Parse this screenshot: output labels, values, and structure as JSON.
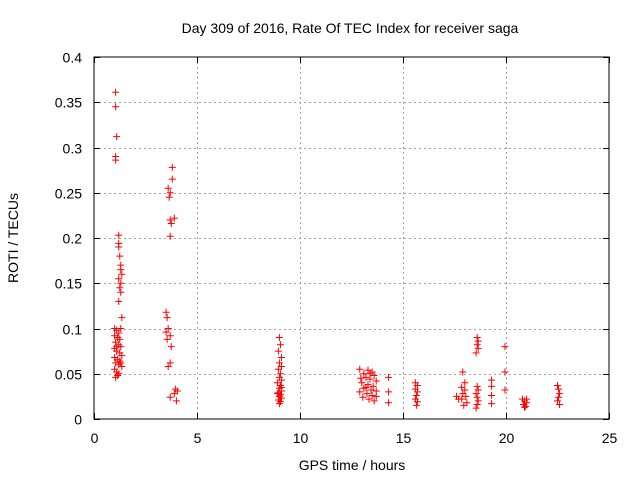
{
  "chart_data": {
    "type": "scatter",
    "title": "Day 309 of 2016, Rate Of TEC Index for receiver saga",
    "xlabel": "GPS time / hours",
    "ylabel": "ROTI / TECUs",
    "xlim": [
      0,
      25
    ],
    "ylim": [
      0,
      0.4
    ],
    "xticks": [
      0,
      5,
      10,
      15,
      20,
      25
    ],
    "yticks": [
      0,
      0.05,
      0.1,
      0.15,
      0.2,
      0.25,
      0.3,
      0.35,
      0.4
    ],
    "xtick_labels": [
      "0",
      "5",
      "10",
      "15",
      "20",
      "25"
    ],
    "ytick_labels": [
      "0",
      "0.05",
      "0.1",
      "0.15",
      "0.2",
      "0.25",
      "0.3",
      "0.35",
      "0.4"
    ],
    "grid": true,
    "marker": "+",
    "color": "#ff0000",
    "series": [
      {
        "name": "ROTI",
        "points": [
          [
            1.05,
            0.361
          ],
          [
            1.05,
            0.345
          ],
          [
            1.1,
            0.312
          ],
          [
            1.05,
            0.29
          ],
          [
            1.05,
            0.286
          ],
          [
            1.2,
            0.203
          ],
          [
            1.2,
            0.194
          ],
          [
            1.2,
            0.19
          ],
          [
            1.25,
            0.18
          ],
          [
            1.3,
            0.17
          ],
          [
            1.3,
            0.165
          ],
          [
            1.35,
            0.16
          ],
          [
            1.2,
            0.155
          ],
          [
            1.3,
            0.15
          ],
          [
            1.25,
            0.145
          ],
          [
            1.3,
            0.14
          ],
          [
            1.2,
            0.13
          ],
          [
            1.35,
            0.112
          ],
          [
            1.0,
            0.1
          ],
          [
            1.1,
            0.098
          ],
          [
            1.2,
            0.095
          ],
          [
            1.3,
            0.1
          ],
          [
            1.0,
            0.092
          ],
          [
            1.15,
            0.09
          ],
          [
            1.25,
            0.088
          ],
          [
            1.05,
            0.085
          ],
          [
            1.2,
            0.082
          ],
          [
            1.3,
            0.08
          ],
          [
            1.0,
            0.078
          ],
          [
            1.1,
            0.075
          ],
          [
            1.25,
            0.073
          ],
          [
            1.35,
            0.07
          ],
          [
            1.0,
            0.068
          ],
          [
            1.15,
            0.066
          ],
          [
            1.25,
            0.064
          ],
          [
            1.05,
            0.062
          ],
          [
            1.2,
            0.06
          ],
          [
            1.35,
            0.058
          ],
          [
            1.0,
            0.055
          ],
          [
            1.1,
            0.052
          ],
          [
            1.2,
            0.05
          ],
          [
            1.05,
            0.046
          ],
          [
            1.15,
            0.048
          ],
          [
            1.3,
            0.062
          ],
          [
            1.1,
            0.08
          ],
          [
            3.8,
            0.278
          ],
          [
            3.8,
            0.265
          ],
          [
            3.6,
            0.255
          ],
          [
            3.7,
            0.25
          ],
          [
            3.65,
            0.245
          ],
          [
            3.9,
            0.222
          ],
          [
            3.7,
            0.22
          ],
          [
            3.75,
            0.216
          ],
          [
            3.7,
            0.202
          ],
          [
            3.5,
            0.118
          ],
          [
            3.55,
            0.112
          ],
          [
            3.6,
            0.1
          ],
          [
            3.5,
            0.096
          ],
          [
            3.7,
            0.092
          ],
          [
            3.55,
            0.088
          ],
          [
            3.75,
            0.08
          ],
          [
            3.7,
            0.062
          ],
          [
            3.6,
            0.058
          ],
          [
            3.95,
            0.033
          ],
          [
            4.05,
            0.031
          ],
          [
            3.9,
            0.028
          ],
          [
            3.7,
            0.024
          ],
          [
            4.0,
            0.02
          ],
          [
            9.0,
            0.09
          ],
          [
            9.05,
            0.082
          ],
          [
            8.95,
            0.075
          ],
          [
            9.1,
            0.068
          ],
          [
            9.0,
            0.062
          ],
          [
            9.1,
            0.058
          ],
          [
            8.95,
            0.055
          ],
          [
            9.05,
            0.05
          ],
          [
            9.0,
            0.046
          ],
          [
            9.1,
            0.043
          ],
          [
            8.9,
            0.04
          ],
          [
            9.05,
            0.037
          ],
          [
            9.0,
            0.034
          ],
          [
            9.1,
            0.031
          ],
          [
            8.95,
            0.029
          ],
          [
            9.05,
            0.027
          ],
          [
            9.0,
            0.025
          ],
          [
            9.1,
            0.023
          ],
          [
            8.95,
            0.021
          ],
          [
            9.05,
            0.019
          ],
          [
            9.0,
            0.017
          ],
          [
            9.1,
            0.035
          ],
          [
            8.9,
            0.028
          ],
          [
            12.9,
            0.055
          ],
          [
            13.3,
            0.054
          ],
          [
            13.5,
            0.052
          ],
          [
            13.1,
            0.05
          ],
          [
            13.6,
            0.048
          ],
          [
            13.2,
            0.046
          ],
          [
            12.95,
            0.045
          ],
          [
            13.4,
            0.044
          ],
          [
            13.7,
            0.042
          ],
          [
            13.0,
            0.04
          ],
          [
            13.3,
            0.038
          ],
          [
            13.55,
            0.036
          ],
          [
            13.1,
            0.034
          ],
          [
            13.45,
            0.032
          ],
          [
            13.7,
            0.031
          ],
          [
            12.9,
            0.03
          ],
          [
            13.25,
            0.028
          ],
          [
            13.5,
            0.026
          ],
          [
            13.05,
            0.024
          ],
          [
            13.35,
            0.022
          ],
          [
            13.6,
            0.02
          ],
          [
            13.2,
            0.035
          ],
          [
            13.4,
            0.05
          ],
          [
            13.7,
            0.025
          ],
          [
            14.3,
            0.046
          ],
          [
            14.3,
            0.03
          ],
          [
            14.3,
            0.018
          ],
          [
            15.6,
            0.04
          ],
          [
            15.7,
            0.037
          ],
          [
            15.6,
            0.033
          ],
          [
            15.7,
            0.03
          ],
          [
            15.65,
            0.026
          ],
          [
            15.6,
            0.022
          ],
          [
            15.7,
            0.019
          ],
          [
            15.65,
            0.015
          ],
          [
            17.6,
            0.025
          ],
          [
            17.7,
            0.022
          ],
          [
            17.9,
            0.052
          ],
          [
            18.0,
            0.04
          ],
          [
            17.85,
            0.035
          ],
          [
            18.0,
            0.032
          ],
          [
            17.9,
            0.028
          ],
          [
            18.05,
            0.025
          ],
          [
            17.85,
            0.022
          ],
          [
            18.1,
            0.018
          ],
          [
            17.95,
            0.015
          ],
          [
            18.6,
            0.09
          ],
          [
            18.65,
            0.086
          ],
          [
            18.6,
            0.082
          ],
          [
            18.65,
            0.078
          ],
          [
            18.55,
            0.073
          ],
          [
            18.6,
            0.036
          ],
          [
            18.65,
            0.032
          ],
          [
            18.55,
            0.028
          ],
          [
            18.6,
            0.024
          ],
          [
            18.65,
            0.02
          ],
          [
            18.6,
            0.016
          ],
          [
            18.55,
            0.012
          ],
          [
            19.3,
            0.043
          ],
          [
            19.3,
            0.036
          ],
          [
            19.3,
            0.026
          ],
          [
            19.3,
            0.017
          ],
          [
            19.95,
            0.08
          ],
          [
            19.95,
            0.052
          ],
          [
            19.95,
            0.032
          ],
          [
            20.8,
            0.022
          ],
          [
            20.9,
            0.02
          ],
          [
            21.0,
            0.018
          ],
          [
            20.85,
            0.016
          ],
          [
            20.95,
            0.014
          ],
          [
            21.0,
            0.022
          ],
          [
            20.9,
            0.013
          ],
          [
            22.5,
            0.037
          ],
          [
            22.55,
            0.033
          ],
          [
            22.6,
            0.028
          ],
          [
            22.55,
            0.024
          ],
          [
            22.5,
            0.02
          ],
          [
            22.6,
            0.016
          ]
        ]
      }
    ]
  }
}
